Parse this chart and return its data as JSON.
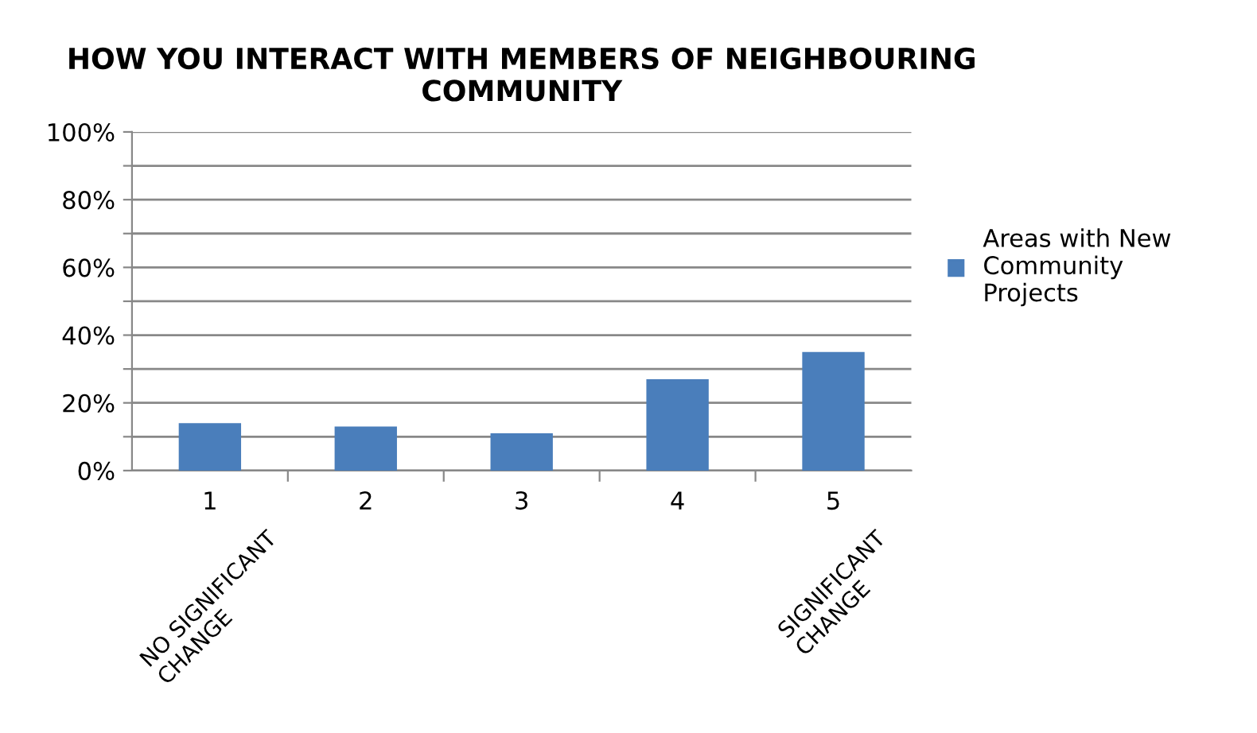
{
  "chart_data": {
    "type": "bar",
    "title": "HOW YOU INTERACT WITH MEMBERS OF NEIGHBOURING\nCOMMUNITY",
    "categories": [
      "1",
      "2",
      "3",
      "4",
      "5"
    ],
    "series": [
      {
        "name": "Areas with New\nCommunity\nProjects",
        "color": "#4a7ebb",
        "values": [
          14,
          13,
          11,
          27,
          35
        ]
      }
    ],
    "ylim": [
      0,
      100
    ],
    "yticks": [
      {
        "value": 0,
        "label": "0%"
      },
      {
        "value": 10,
        "label": null
      },
      {
        "value": 20,
        "label": "20%"
      },
      {
        "value": 30,
        "label": null
      },
      {
        "value": 40,
        "label": "40%"
      },
      {
        "value": 50,
        "label": null
      },
      {
        "value": 60,
        "label": "60%"
      },
      {
        "value": 70,
        "label": null
      },
      {
        "value": 80,
        "label": "80%"
      },
      {
        "value": 90,
        "label": null
      },
      {
        "value": 100,
        "label": "100%"
      }
    ],
    "grid": "y",
    "legend": "right",
    "annotations": [
      "NO SIGNIFICANT\nCHANGE",
      "SIGNIFICANT\nCHANGE"
    ]
  }
}
